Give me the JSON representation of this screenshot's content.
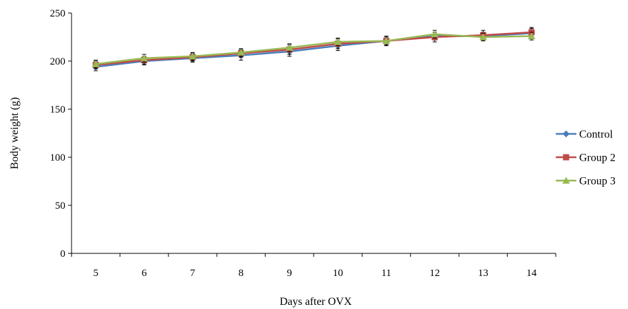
{
  "chart_data": {
    "type": "line",
    "xlabel": "Days after OVX",
    "ylabel": "Body weight (g)",
    "x": [
      5,
      6,
      7,
      8,
      9,
      10,
      11,
      12,
      13,
      14
    ],
    "ylim": [
      0,
      250
    ],
    "yticks": [
      0,
      50,
      100,
      150,
      200,
      250
    ],
    "grid": false,
    "legend": "right",
    "series": [
      {
        "name": "Control",
        "marker": "diamond",
        "color": "#4a7ebb",
        "values": [
          194,
          200,
          203,
          206,
          210,
          216,
          221,
          226,
          226,
          229
        ],
        "errors": [
          4,
          4,
          4,
          5,
          5,
          5,
          4,
          4,
          4,
          5
        ]
      },
      {
        "name": "Group 2",
        "marker": "square",
        "color": "#be4b48",
        "values": [
          196,
          201,
          204,
          208,
          212,
          218,
          221,
          225,
          227,
          230
        ],
        "errors": [
          4,
          4,
          4,
          4,
          5,
          5,
          5,
          5,
          5,
          5
        ]
      },
      {
        "name": "Group 3",
        "marker": "triangle",
        "color": "#98b954",
        "values": [
          197,
          203,
          205,
          209,
          214,
          220,
          221,
          228,
          225,
          226
        ],
        "errors": [
          4,
          4,
          4,
          4,
          4,
          4,
          4,
          4,
          4,
          4
        ]
      }
    ]
  }
}
